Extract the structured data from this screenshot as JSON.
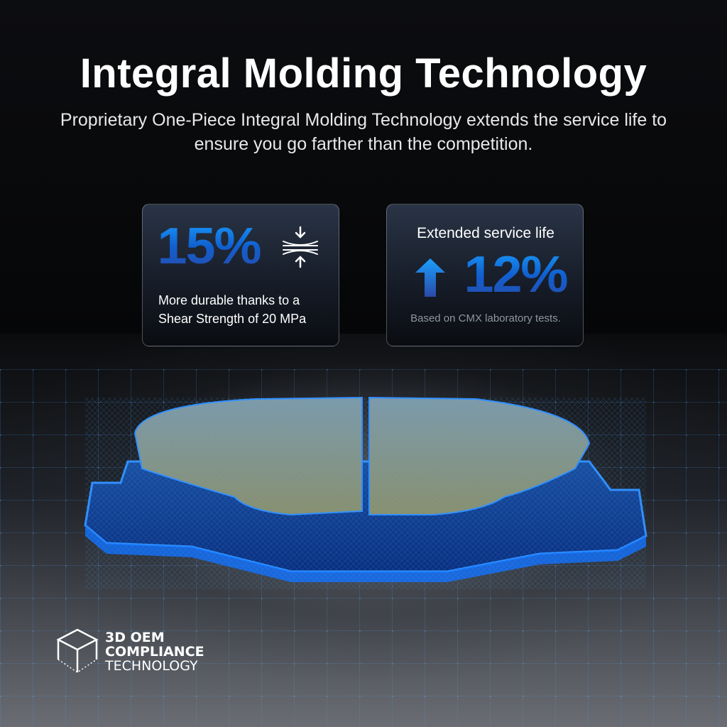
{
  "header": {
    "title": "Integral Molding Technology",
    "subtitle": "Proprietary One-Piece Integral Molding Technology extends the service life to ensure you go farther than the competition."
  },
  "cards": [
    {
      "value": "15%",
      "icon": "compression-arrows-icon",
      "text_line1": "More durable thanks to a",
      "text_line2": "Shear Strength of 20 MPa"
    },
    {
      "heading": "Extended service life",
      "icon": "arrow-up-icon",
      "value": "12%",
      "note": "Based on CMX laboratory tests."
    }
  ],
  "logo": {
    "icon": "cube-icon",
    "line1": "3D OEM",
    "line2": "COMPLIANCE",
    "line3": "TECHNOLOGY"
  },
  "colors": {
    "accent": "#1a8cff",
    "mesh": "#2f8fff",
    "background": "#050607"
  }
}
